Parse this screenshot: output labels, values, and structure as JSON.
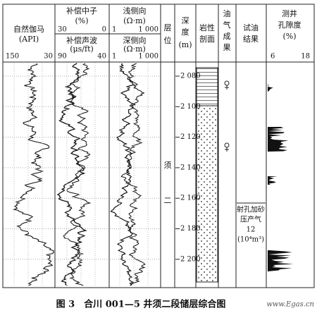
{
  "gamma": {
    "title": "自然伽马",
    "unit": "(API)",
    "left": 150,
    "right": 30
  },
  "neutron": {
    "title": "补偿中子",
    "unit": "(%)",
    "left": 30,
    "right": 0
  },
  "sonic": {
    "title": "补偿声波",
    "unit": "(μs/ft)",
    "left": 90,
    "right": 40
  },
  "shallow": {
    "title": "浅侧向",
    "unit": "(Ω·m)",
    "left": 1,
    "right": "1 000"
  },
  "deep": {
    "title": "深侧向",
    "unit": "(Ω·m)",
    "left": 1,
    "right": "1 000"
  },
  "formation_header": [
    "层",
    "位"
  ],
  "depth_header": [
    "深",
    "度",
    "(m)"
  ],
  "lithology_header": [
    "岩性",
    "剖面"
  ],
  "shows_header": [
    "油",
    "气",
    "成",
    "果"
  ],
  "test_header": [
    "试油",
    "结果"
  ],
  "porosity": {
    "title": [
      "测井",
      "孔隙度"
    ],
    "unit": "(%)",
    "left": 6,
    "right": 18
  },
  "formation": [
    "须",
    "二"
  ],
  "depths": [
    "2 080",
    "2 100",
    "2 120",
    "2 140",
    "2 160",
    "2 180",
    "2 200"
  ],
  "test_result": [
    "射孔加砂",
    "压产气",
    "12",
    "(10⁴m³)"
  ],
  "caption": "图 3　合川 001—5 井须二段储层综合图",
  "watermark": "www.Egas.cn"
}
